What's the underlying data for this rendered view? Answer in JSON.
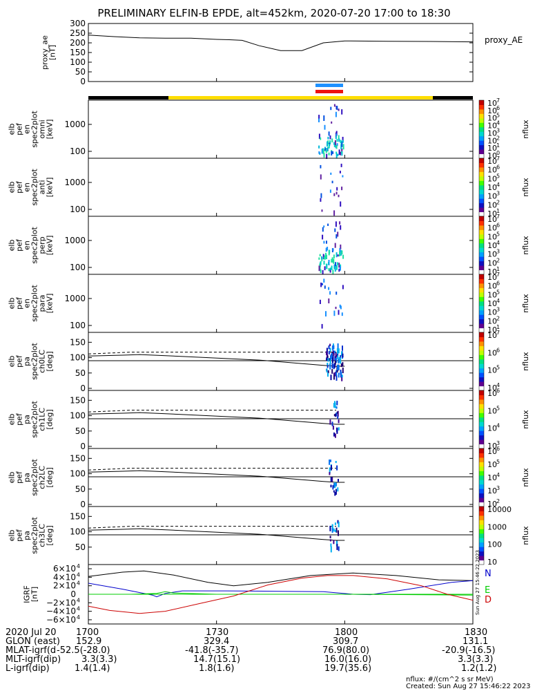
{
  "title": "PRELIMINARY ELFIN-B EPDE, alt=452km, 2020-07-20 17:00 to 18:30",
  "chart_data": [
    {
      "type": "line",
      "id": "proxy_ae",
      "ylabel": [
        "proxy_ae",
        "[nT]"
      ],
      "legend": "proxy_AE",
      "yticks": [
        "0",
        "50",
        "100",
        "150",
        "200",
        "250",
        "300"
      ],
      "ylim": [
        0,
        300
      ],
      "x": [
        0,
        6,
        12,
        18,
        24,
        30,
        33,
        36,
        40,
        45,
        50,
        55,
        60,
        70,
        80,
        90
      ],
      "y": [
        240,
        232,
        226,
        224,
        224,
        218,
        216,
        213,
        185,
        160,
        160,
        200,
        210,
        208,
        207,
        205
      ]
    },
    {
      "type": "heatmap",
      "id": "omni",
      "ylabel": [
        "elb",
        "pef",
        "en",
        "spec2plot",
        "omni",
        "[keV]"
      ],
      "yticks": [
        "100",
        "1000"
      ],
      "colorbar": {
        "label": "nflux",
        "ticks": [
          "10",
          "10",
          "10",
          "10",
          "10",
          "10",
          "10",
          "10"
        ],
        "exponents": [
          "0",
          "1",
          "2",
          "3",
          "4",
          "5",
          "6",
          "7"
        ]
      }
    },
    {
      "type": "heatmap",
      "id": "anti",
      "ylabel": [
        "elb",
        "pef",
        "en",
        "spec2plot",
        "anti",
        "[keV]"
      ],
      "yticks": [
        "100",
        "1000"
      ],
      "colorbar": {
        "label": "nflux",
        "ticks": [
          "10",
          "10",
          "10",
          "10",
          "10",
          "10",
          "10"
        ],
        "exponents": [
          "1",
          "2",
          "3",
          "4",
          "5",
          "6",
          "7"
        ]
      }
    },
    {
      "type": "heatmap",
      "id": "perp",
      "ylabel": [
        "elb",
        "pef",
        "en",
        "spec2plot",
        "perp",
        "[keV]"
      ],
      "yticks": [
        "100",
        "1000"
      ],
      "colorbar": {
        "label": "nflux",
        "ticks": [
          "10",
          "10",
          "10",
          "10",
          "10",
          "10",
          "10"
        ],
        "exponents": [
          "1",
          "2",
          "3",
          "4",
          "5",
          "6",
          "7"
        ]
      }
    },
    {
      "type": "heatmap",
      "id": "para",
      "ylabel": [
        "elb",
        "pef",
        "en",
        "spec2plot",
        "para",
        "[keV]"
      ],
      "yticks": [
        "100",
        "1000"
      ],
      "colorbar": {
        "label": "nflux",
        "ticks": [
          "10",
          "10",
          "10",
          "10",
          "10",
          "10",
          "10"
        ],
        "exponents": [
          "1",
          "2",
          "3",
          "4",
          "5",
          "6",
          "7"
        ]
      }
    },
    {
      "type": "heatmap",
      "id": "ch0lc",
      "ylabel": [
        "elb",
        "pef",
        "pa",
        "spec2plot",
        "ch0LC",
        "[deg]"
      ],
      "yticks": [
        "0",
        "50",
        "100",
        "150"
      ],
      "ylim": [
        0,
        180
      ],
      "colorbar": {
        "label": "nflux",
        "ticks": [
          "10",
          "10",
          "10",
          "10"
        ],
        "exponents": [
          "4",
          "5",
          "6",
          "7"
        ]
      }
    },
    {
      "type": "heatmap",
      "id": "ch1lc",
      "ylabel": [
        "elb",
        "pef",
        "pa",
        "spec2plot",
        "ch1LC",
        "[deg]"
      ],
      "yticks": [
        "0",
        "50",
        "100",
        "150"
      ],
      "ylim": [
        0,
        180
      ],
      "colorbar": {
        "label": "nflux",
        "ticks": [
          "10",
          "10",
          "10",
          "10"
        ],
        "exponents": [
          "3",
          "4",
          "5",
          "6"
        ]
      }
    },
    {
      "type": "heatmap",
      "id": "ch2lc",
      "ylabel": [
        "elb",
        "pef",
        "pa",
        "spec2plot",
        "ch2LC",
        "[deg]"
      ],
      "yticks": [
        "0",
        "50",
        "100",
        "150"
      ],
      "ylim": [
        0,
        180
      ],
      "colorbar": {
        "label": "nflux",
        "ticks": [
          "10",
          "10",
          "10",
          "10",
          "10"
        ],
        "exponents": [
          "2",
          "3",
          "4",
          "5",
          "6"
        ]
      }
    },
    {
      "type": "heatmap",
      "id": "ch3lc",
      "ylabel": [
        "elb",
        "pef",
        "pa",
        "spec2plot",
        "ch3LC",
        "[deg]"
      ],
      "yticks": [
        "50",
        "100",
        "150"
      ],
      "ylim": [
        0,
        180
      ],
      "colorbar": {
        "label": "nflux",
        "ticks": [
          "10",
          "100",
          "1000",
          "10000"
        ],
        "exponents": [
          "",
          "",
          "",
          ""
        ]
      }
    },
    {
      "type": "line",
      "id": "igrf",
      "ylabel": [
        "IGRF",
        "[nT]"
      ],
      "yticks": [
        {
          "m": "6",
          "e": "4"
        },
        {
          "m": "4",
          "e": "4"
        },
        {
          "m": "2",
          "e": "4"
        },
        {
          "m": "0",
          "e": ""
        },
        {
          "m": "−2",
          "e": "4"
        },
        {
          "m": "−4",
          "e": "4"
        },
        {
          "m": "−6",
          "e": "4"
        }
      ],
      "ylim": [
        -65000,
        65000
      ],
      "series": [
        {
          "name": "N",
          "color": "#0000cc"
        },
        {
          "name": "E",
          "color": "#00cc00"
        },
        {
          "name": "D",
          "color": "#cc0000"
        }
      ],
      "side_text": "Sun Aug 27 15:46:22 2023"
    }
  ],
  "x_axis": {
    "date": "2020 Jul 20",
    "ticks": [
      "1700",
      "1730",
      "1800",
      "1830"
    ],
    "rows": [
      {
        "label": "GLON (east)",
        "values": [
          "152.9",
          "329.4",
          "309.7",
          "131.1"
        ]
      },
      {
        "label": "MLAT-igrf(dip)",
        "values": [
          "-52.5(-28.0)",
          "-41.8(-35.7)",
          "76.9(80.0)",
          "-20.9(-16.5)"
        ]
      },
      {
        "label": "MLT-igrf(dip)",
        "values": [
          "3.3(3.3)",
          "14.7(15.1)",
          "16.0(16.0)",
          "3.3(3.3)"
        ]
      },
      {
        "label": "L-igrf(dip)",
        "values": [
          "1.4(1.4)",
          "1.8(1.6)",
          "19.7(35.6)",
          "1.2(1.2)"
        ]
      }
    ]
  },
  "footer": {
    "units": "nflux: #/(cm^2 s sr MeV)",
    "created": "Created: Sun Aug 27 15:46:22 2023"
  },
  "colors": {
    "orbit_bar_dark": "#000000",
    "orbit_bar_light": "#ffdd00",
    "science_blue": "#1e90ff",
    "science_red": "#ee1111"
  }
}
